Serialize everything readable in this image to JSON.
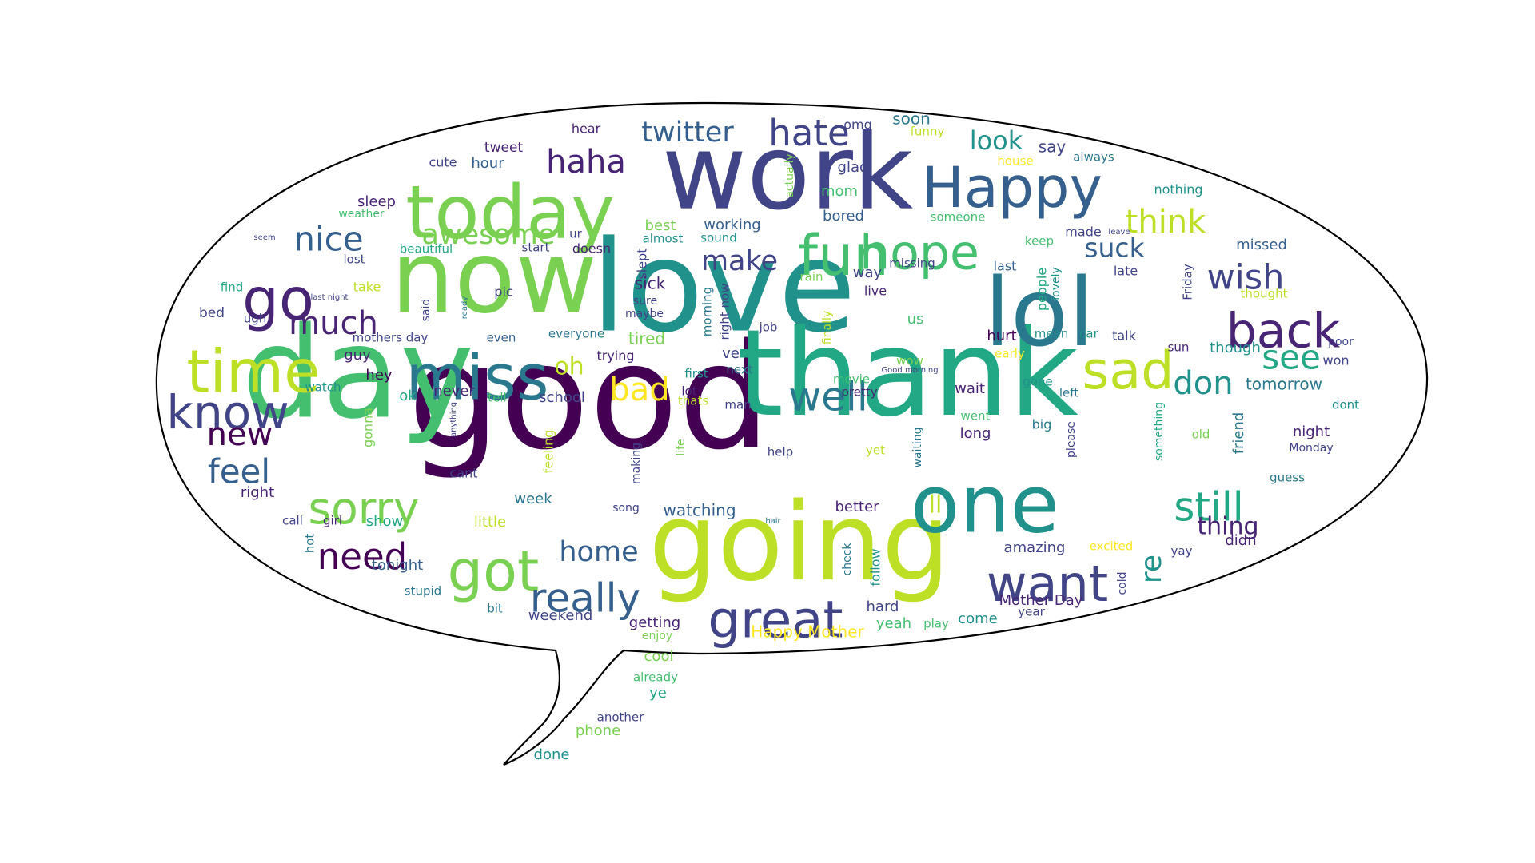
{
  "image": {
    "description_kind": "speech-bubble word cloud",
    "background": "#ffffff",
    "bubble_fill": "#ffffff",
    "bubble_stroke": "#000000",
    "palette": [
      "#440154",
      "#482475",
      "#414487",
      "#355f8d",
      "#2a788e",
      "#21918c",
      "#22a884",
      "#44bf70",
      "#7ad151",
      "#bddf26",
      "#fde725"
    ]
  },
  "words": [
    {
      "text": "good",
      "color": "#440154"
    },
    {
      "text": "love",
      "color": "#21918c"
    },
    {
      "text": "thank",
      "color": "#22a884"
    },
    {
      "text": "day",
      "color": "#44bf70"
    },
    {
      "text": "going",
      "color": "#bddf26"
    },
    {
      "text": "work",
      "color": "#414487"
    },
    {
      "text": "now",
      "color": "#7ad151"
    },
    {
      "text": "lol",
      "color": "#2a788e"
    },
    {
      "text": "one",
      "color": "#21918c"
    },
    {
      "text": "today",
      "color": "#7ad151"
    },
    {
      "text": "Happy",
      "color": "#355f8d"
    },
    {
      "text": "miss",
      "color": "#2a788e"
    },
    {
      "text": "time",
      "color": "#bddf26"
    },
    {
      "text": "go",
      "color": "#482475"
    },
    {
      "text": "fun",
      "color": "#44bf70"
    },
    {
      "text": "hope",
      "color": "#44bf70"
    },
    {
      "text": "great",
      "color": "#414487"
    },
    {
      "text": "got",
      "color": "#7ad151"
    },
    {
      "text": "want",
      "color": "#414487"
    },
    {
      "text": "back",
      "color": "#482475"
    },
    {
      "text": "sad",
      "color": "#bddf26"
    },
    {
      "text": "know",
      "color": "#414487"
    },
    {
      "text": "really",
      "color": "#355f8d"
    },
    {
      "text": "sorry",
      "color": "#7ad151"
    },
    {
      "text": "still",
      "color": "#22a884"
    },
    {
      "text": "need",
      "color": "#440154"
    },
    {
      "text": "well",
      "color": "#2a788e"
    },
    {
      "text": "hate",
      "color": "#414487"
    },
    {
      "text": "twitter",
      "color": "#355f8d"
    },
    {
      "text": "haha",
      "color": "#482475"
    },
    {
      "text": "nice",
      "color": "#355f8d"
    },
    {
      "text": "much",
      "color": "#482475"
    },
    {
      "text": "new",
      "color": "#440154"
    },
    {
      "text": "feel",
      "color": "#355f8d"
    },
    {
      "text": "awesome",
      "color": "#7ad151"
    },
    {
      "text": "make",
      "color": "#414487"
    },
    {
      "text": "suck",
      "color": "#355f8d"
    },
    {
      "text": "think",
      "color": "#bddf26"
    },
    {
      "text": "wish",
      "color": "#414487"
    },
    {
      "text": "see",
      "color": "#22a884"
    },
    {
      "text": "don",
      "color": "#21918c"
    },
    {
      "text": "look",
      "color": "#21918c"
    },
    {
      "text": "bad",
      "color": "#fde725"
    },
    {
      "text": "oh",
      "color": "#bddf26"
    },
    {
      "text": "home",
      "color": "#355f8d"
    },
    {
      "text": "ll",
      "color": "#bddf26"
    },
    {
      "text": "thing",
      "color": "#482475"
    },
    {
      "text": "re",
      "color": "#21918c"
    },
    {
      "text": "watching",
      "color": "#355f8d"
    },
    {
      "text": "tomorrow",
      "color": "#2a788e"
    },
    {
      "text": "say",
      "color": "#414487"
    },
    {
      "text": "soon",
      "color": "#2a788e"
    },
    {
      "text": "omg",
      "color": "#414487"
    },
    {
      "text": "hear",
      "color": "#482475"
    },
    {
      "text": "tweet",
      "color": "#482475"
    },
    {
      "text": "hour",
      "color": "#355f8d"
    },
    {
      "text": "cute",
      "color": "#414487"
    },
    {
      "text": "sleep",
      "color": "#482475"
    },
    {
      "text": "weather",
      "color": "#44bf70"
    },
    {
      "text": "seem",
      "color": "#414487"
    },
    {
      "text": "beautiful",
      "color": "#22a884"
    },
    {
      "text": "lost",
      "color": "#414487"
    },
    {
      "text": "find",
      "color": "#22a884"
    },
    {
      "text": "last night",
      "color": "#414487"
    },
    {
      "text": "bed",
      "color": "#414487"
    },
    {
      "text": "ugh",
      "color": "#414487"
    },
    {
      "text": "take",
      "color": "#bddf26"
    },
    {
      "text": "said",
      "color": "#414487"
    },
    {
      "text": "ready",
      "color": "#2a788e"
    },
    {
      "text": "pic",
      "color": "#414487"
    },
    {
      "text": "ur",
      "color": "#414487"
    },
    {
      "text": "start",
      "color": "#414487"
    },
    {
      "text": "doesn",
      "color": "#482475"
    },
    {
      "text": "slept",
      "color": "#414487"
    },
    {
      "text": "almost",
      "color": "#21918c"
    },
    {
      "text": "best",
      "color": "#7ad151"
    },
    {
      "text": "working",
      "color": "#355f8d"
    },
    {
      "text": "sound",
      "color": "#21918c"
    },
    {
      "text": "sick",
      "color": "#482475"
    },
    {
      "text": "sure",
      "color": "#414487"
    },
    {
      "text": "maybe",
      "color": "#414487"
    },
    {
      "text": "tired",
      "color": "#7ad151"
    },
    {
      "text": "trying",
      "color": "#482475"
    },
    {
      "text": "everyone",
      "color": "#2a788e"
    },
    {
      "text": "mothers day",
      "color": "#414487"
    },
    {
      "text": "even",
      "color": "#355f8d"
    },
    {
      "text": "guy",
      "color": "#482475"
    },
    {
      "text": "hey",
      "color": "#440154"
    },
    {
      "text": "watch",
      "color": "#21918c"
    },
    {
      "text": "ok",
      "color": "#22a884"
    },
    {
      "text": "never",
      "color": "#482475"
    },
    {
      "text": "tell",
      "color": "#44bf70"
    },
    {
      "text": "school",
      "color": "#414487"
    },
    {
      "text": "gonna",
      "color": "#7ad151"
    },
    {
      "text": "anything",
      "color": "#414487"
    },
    {
      "text": "feeling",
      "color": "#bddf26"
    },
    {
      "text": "cant",
      "color": "#414487"
    },
    {
      "text": "right",
      "color": "#482475"
    },
    {
      "text": "week",
      "color": "#2a788e"
    },
    {
      "text": "making",
      "color": "#414487"
    },
    {
      "text": "little",
      "color": "#bddf26"
    },
    {
      "text": "song",
      "color": "#414487"
    },
    {
      "text": "call",
      "color": "#414487"
    },
    {
      "text": "girl",
      "color": "#482475"
    },
    {
      "text": "show",
      "color": "#22a884"
    },
    {
      "text": "hot",
      "color": "#2a788e"
    },
    {
      "text": "tonight",
      "color": "#355f8d"
    },
    {
      "text": "stupid",
      "color": "#2a788e"
    },
    {
      "text": "bit",
      "color": "#2a788e"
    },
    {
      "text": "weekend",
      "color": "#414487"
    },
    {
      "text": "getting",
      "color": "#482475"
    },
    {
      "text": "enjoy",
      "color": "#7ad151"
    },
    {
      "text": "cool",
      "color": "#7ad151"
    },
    {
      "text": "already",
      "color": "#44bf70"
    },
    {
      "text": "ye",
      "color": "#22a884"
    },
    {
      "text": "another",
      "color": "#414487"
    },
    {
      "text": "phone",
      "color": "#7ad151"
    },
    {
      "text": "done",
      "color": "#21918c"
    },
    {
      "text": "Happy Mother",
      "color": "#fde725"
    },
    {
      "text": "better",
      "color": "#482475"
    },
    {
      "text": "hard",
      "color": "#414487"
    },
    {
      "text": "yeah",
      "color": "#44bf70"
    },
    {
      "text": "play",
      "color": "#44bf70"
    },
    {
      "text": "come",
      "color": "#21918c"
    },
    {
      "text": "Mother Day",
      "color": "#482475"
    },
    {
      "text": "year",
      "color": "#414487"
    },
    {
      "text": "amazing",
      "color": "#414487"
    },
    {
      "text": "excited",
      "color": "#fde725"
    },
    {
      "text": "cold",
      "color": "#414487"
    },
    {
      "text": "didn",
      "color": "#482475"
    },
    {
      "text": "yay",
      "color": "#414487"
    },
    {
      "text": "glad",
      "color": "#414487"
    },
    {
      "text": "mom",
      "color": "#44bf70"
    },
    {
      "text": "bored",
      "color": "#355f8d"
    },
    {
      "text": "actually",
      "color": "#7ad151"
    },
    {
      "text": "funny",
      "color": "#bddf26"
    },
    {
      "text": "house",
      "color": "#fde725"
    },
    {
      "text": "always",
      "color": "#2a788e"
    },
    {
      "text": "nothing",
      "color": "#21918c"
    },
    {
      "text": "someone",
      "color": "#44bf70"
    },
    {
      "text": "keep",
      "color": "#44bf70"
    },
    {
      "text": "made",
      "color": "#414487"
    },
    {
      "text": "leave",
      "color": "#414487"
    },
    {
      "text": "missed",
      "color": "#355f8d"
    },
    {
      "text": "rain",
      "color": "#7ad151"
    },
    {
      "text": "way",
      "color": "#414487"
    },
    {
      "text": "missing",
      "color": "#414487"
    },
    {
      "text": "last",
      "color": "#355f8d"
    },
    {
      "text": "people",
      "color": "#22a884"
    },
    {
      "text": "lovely",
      "color": "#21918c"
    },
    {
      "text": "late",
      "color": "#414487"
    },
    {
      "text": "Friday",
      "color": "#414487"
    },
    {
      "text": "thought",
      "color": "#bddf26"
    },
    {
      "text": "live",
      "color": "#482475"
    },
    {
      "text": "us",
      "color": "#44bf70"
    },
    {
      "text": "job",
      "color": "#414487"
    },
    {
      "text": "finally",
      "color": "#bddf26"
    },
    {
      "text": "right now",
      "color": "#414487"
    },
    {
      "text": "morning",
      "color": "#2a788e"
    },
    {
      "text": "mean",
      "color": "#21918c"
    },
    {
      "text": "car",
      "color": "#21918c"
    },
    {
      "text": "talk",
      "color": "#414487"
    },
    {
      "text": "hurt",
      "color": "#440154"
    },
    {
      "text": "early",
      "color": "#fde725"
    },
    {
      "text": "sun",
      "color": "#482475"
    },
    {
      "text": "though",
      "color": "#21918c"
    },
    {
      "text": "poor",
      "color": "#414487"
    },
    {
      "text": "won",
      "color": "#414487"
    },
    {
      "text": "ve",
      "color": "#414487"
    },
    {
      "text": "next",
      "color": "#2a788e"
    },
    {
      "text": "wow",
      "color": "#7ad151"
    },
    {
      "text": "Good morning",
      "color": "#414487"
    },
    {
      "text": "first",
      "color": "#21918c"
    },
    {
      "text": "movie",
      "color": "#44bf70"
    },
    {
      "text": "gone",
      "color": "#21918c"
    },
    {
      "text": "lot",
      "color": "#482475"
    },
    {
      "text": "pretty",
      "color": "#482475"
    },
    {
      "text": "thats",
      "color": "#bddf26"
    },
    {
      "text": "man",
      "color": "#414487"
    },
    {
      "text": "wait",
      "color": "#482475"
    },
    {
      "text": "left",
      "color": "#2a788e"
    },
    {
      "text": "went",
      "color": "#44bf70"
    },
    {
      "text": "big",
      "color": "#2a788e"
    },
    {
      "text": "dont",
      "color": "#21918c"
    },
    {
      "text": "long",
      "color": "#482475"
    },
    {
      "text": "please",
      "color": "#414487"
    },
    {
      "text": "waiting",
      "color": "#2a788e"
    },
    {
      "text": "something",
      "color": "#22a884"
    },
    {
      "text": "old",
      "color": "#7ad151"
    },
    {
      "text": "friend",
      "color": "#2a788e"
    },
    {
      "text": "night",
      "color": "#482475"
    },
    {
      "text": "Monday",
      "color": "#414487"
    },
    {
      "text": "guess",
      "color": "#2a788e"
    },
    {
      "text": "help",
      "color": "#414487"
    },
    {
      "text": "yet",
      "color": "#bddf26"
    },
    {
      "text": "life",
      "color": "#7ad151"
    },
    {
      "text": "hair",
      "color": "#2a788e"
    },
    {
      "text": "check",
      "color": "#2a788e"
    },
    {
      "text": "follow",
      "color": "#21918c"
    }
  ]
}
